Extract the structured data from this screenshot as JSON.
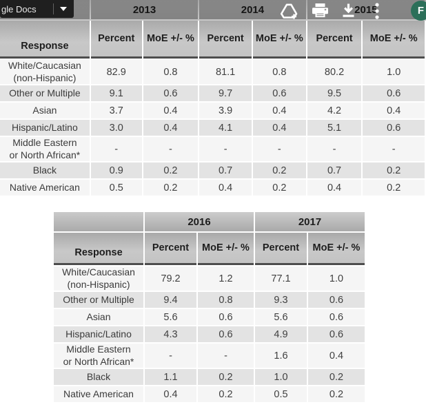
{
  "toolbar": {
    "docs_label": "gle Docs",
    "icons": [
      "drive-add",
      "print",
      "download",
      "more-vertical"
    ],
    "avatar_letter": "F",
    "avatar_color": "#2c6f59"
  },
  "tables": [
    {
      "year_groups": [
        "2013",
        "2014",
        "2015"
      ],
      "response_header": "Response",
      "sub_headers": [
        "Percent",
        "MoE +/- %"
      ],
      "rows": [
        {
          "label": "White/Caucasian\n(non-Hispanic)",
          "values": [
            "82.9",
            "0.8",
            "81.1",
            "0.8",
            "80.2",
            "1.0"
          ]
        },
        {
          "label": "Other or Multiple",
          "values": [
            "9.1",
            "0.6",
            "9.7",
            "0.6",
            "9.5",
            "0.6"
          ]
        },
        {
          "label": "Asian",
          "values": [
            "3.7",
            "0.4",
            "3.9",
            "0.4",
            "4.2",
            "0.4"
          ]
        },
        {
          "label": "Hispanic/Latino",
          "values": [
            "3.0",
            "0.4",
            "4.1",
            "0.4",
            "5.1",
            "0.6"
          ]
        },
        {
          "label": "Middle Eastern\nor North African*",
          "values": [
            "-",
            "-",
            "-",
            "-",
            "-",
            "-"
          ]
        },
        {
          "label": "Black",
          "values": [
            "0.9",
            "0.2",
            "0.7",
            "0.2",
            "0.7",
            "0.2"
          ]
        },
        {
          "label": "Native American",
          "values": [
            "0.5",
            "0.2",
            "0.4",
            "0.2",
            "0.4",
            "0.2"
          ]
        }
      ]
    },
    {
      "year_groups": [
        "2016",
        "2017"
      ],
      "response_header": "Response",
      "sub_headers": [
        "Percent",
        "MoE +/- %"
      ],
      "rows": [
        {
          "label": "White/Caucasian\n(non-Hispanic)",
          "values": [
            "79.2",
            "1.2",
            "77.1",
            "1.0"
          ]
        },
        {
          "label": "Other or Multiple",
          "values": [
            "9.4",
            "0.8",
            "9.3",
            "0.6"
          ]
        },
        {
          "label": "Asian",
          "values": [
            "5.6",
            "0.6",
            "5.6",
            "0.6"
          ]
        },
        {
          "label": "Hispanic/Latino",
          "values": [
            "4.3",
            "0.6",
            "4.9",
            "0.6"
          ]
        },
        {
          "label": "Middle Eastern\nor North African*",
          "values": [
            "-",
            "-",
            "1.6",
            "0.4"
          ]
        },
        {
          "label": "Black",
          "values": [
            "1.1",
            "0.2",
            "1.0",
            "0.2"
          ]
        },
        {
          "label": "Native American",
          "values": [
            "0.4",
            "0.2",
            "0.5",
            "0.2"
          ]
        }
      ]
    }
  ]
}
